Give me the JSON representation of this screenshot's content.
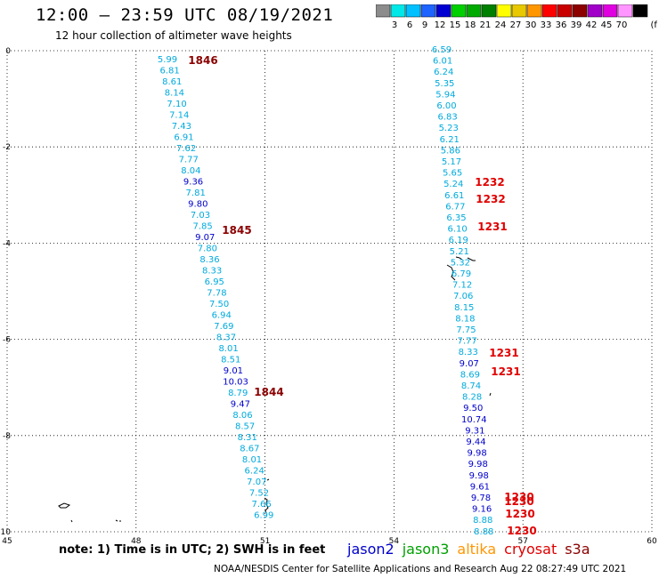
{
  "title": "12:00 – 23:59 UTC 08/19/2021",
  "subtitle": "12 hour collection of altimeter wave heights",
  "colorbar": {
    "unit": "(ft)",
    "bins": [
      {
        "label": "",
        "color": "#8c8c8c"
      },
      {
        "label": "3",
        "color": "#00e8e8"
      },
      {
        "label": "6",
        "color": "#00c0ff"
      },
      {
        "label": "9",
        "color": "#1e64ff"
      },
      {
        "label": "12",
        "color": "#0000d2"
      },
      {
        "label": "15",
        "color": "#00d000"
      },
      {
        "label": "18",
        "color": "#00aa00"
      },
      {
        "label": "21",
        "color": "#008000"
      },
      {
        "label": "24",
        "color": "#ffff00"
      },
      {
        "label": "27",
        "color": "#e8c800"
      },
      {
        "label": "30",
        "color": "#ff9600"
      },
      {
        "label": "33",
        "color": "#ff0000"
      },
      {
        "label": "36",
        "color": "#c80000"
      },
      {
        "label": "39",
        "color": "#8c0000"
      },
      {
        "label": "42",
        "color": "#a000c8"
      },
      {
        "label": "45",
        "color": "#e000e0"
      },
      {
        "label": "70",
        "color": "#ff96ff"
      },
      {
        "label": "",
        "color": "#000000"
      }
    ]
  },
  "axes": {
    "lat_ticks": [
      "0",
      "-2",
      "-4",
      "-6",
      "-8",
      "-10"
    ],
    "lon_ticks": [
      "45",
      "48",
      "51",
      "54",
      "57",
      "60"
    ]
  },
  "satellites": [
    {
      "name": "jason2",
      "color": "#0000cc"
    },
    {
      "name": "jason3",
      "color": "#00a000"
    },
    {
      "name": "altika",
      "color": "#ff9600"
    },
    {
      "name": "cryosat",
      "color": "#e00000"
    },
    {
      "name": "s3a",
      "color": "#8b0000"
    }
  ],
  "colors": {
    "light": "#00aadd",
    "dark": "#0000cc",
    "time_red": "#e00000",
    "time_dark": "#8b0000"
  },
  "track1": {
    "values": [
      "5.99",
      "6.81",
      "8.61",
      "8.14",
      "7.10",
      "7.14",
      "7.43",
      "6.91",
      "7.62",
      "7.77",
      "8.04",
      "9.36",
      "7.81",
      "9.80",
      "7.03",
      "7.85",
      "9.07",
      "7.80",
      "8.36",
      "8.33",
      "6.95",
      "7.78",
      "7.50",
      "6.94",
      "7.69",
      "8.37",
      "8.01",
      "8.51",
      "9.01",
      "10.03",
      "8.79",
      "9.47",
      "8.06",
      "8.57",
      "8.31",
      "8.67",
      "8.01",
      "6.24",
      "7.07",
      "7.52",
      "7.66",
      "6.99"
    ],
    "times": [
      "1846",
      "1845",
      "1844"
    ]
  },
  "track2": {
    "values": [
      "6.59",
      "6.01",
      "6.24",
      "5.35",
      "5.94",
      "6.00",
      "6.83",
      "5.23",
      "6.21",
      "5.86",
      "5.17",
      "5.65",
      "5.24",
      "6.61",
      "6.77",
      "6.35",
      "6.10",
      "6.19",
      "5.21",
      "5.32",
      "6.79",
      "7.12",
      "7.06",
      "8.15",
      "8.18",
      "7.75",
      "7.77",
      "8.33",
      "9.07",
      "8.69",
      "8.74",
      "8.28",
      "9.50",
      "10.74",
      "9.31",
      "9.44",
      "9.98",
      "9.98",
      "9.98",
      "9.61",
      "9.78",
      "9.16",
      "8.88",
      "8.88"
    ],
    "times": [
      "1232",
      "1232",
      "1231",
      "1231",
      "1231",
      "1230",
      "1230",
      "1230",
      "1230"
    ]
  },
  "note": "note: 1) Time is in UTC; 2) SWH is in feet",
  "credit": "NOAA/NESDIS Center for Satellite Applications and Research    Aug 22 08:27:49 UTC 2021"
}
